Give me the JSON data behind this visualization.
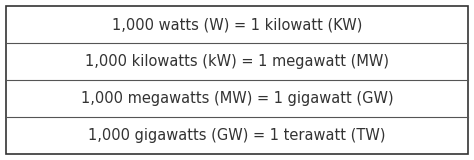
{
  "rows": [
    "1,000 watts (W) = 1 kilowatt (KW)",
    "1,000 kilowatts (kW) = 1 megawatt (MW)",
    "1,000 megawatts (MW) = 1 gigawatt (GW)",
    "1,000 gigawatts (GW) = 1 terawatt (TW)"
  ],
  "background_color": "#ffffff",
  "border_color": "#333333",
  "divider_color": "#555555",
  "text_color": "#333333",
  "font_size": 10.5,
  "fig_width": 4.74,
  "fig_height": 1.6,
  "dpi": 100
}
